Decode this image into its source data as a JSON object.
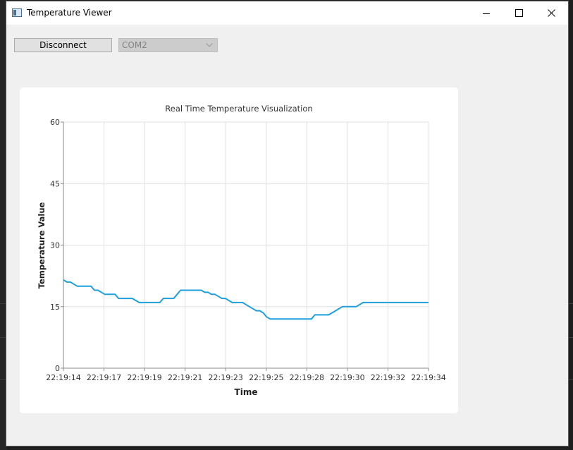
{
  "window": {
    "title": "Temperature Viewer",
    "controls": [
      "minimize-icon",
      "maximize-icon",
      "close-icon"
    ]
  },
  "toolbar": {
    "connect_button_label": "Disconnect",
    "port_select": {
      "value": "COM2",
      "enabled": false
    }
  },
  "colors": {
    "series": "#1f9fdd",
    "grid": "#e0e0e0",
    "window_bg": "#f0f0f0"
  },
  "chart_data": {
    "type": "line",
    "title": "Real Time Temperature Visualization",
    "xlabel": "Time",
    "ylabel": "Temperature Value",
    "ylim": [
      0,
      60
    ],
    "yticks": [
      0,
      15,
      30,
      45,
      60
    ],
    "xtick_labels": [
      "22:19:14",
      "22:19:17",
      "22:19:19",
      "22:19:21",
      "22:19:23",
      "22:19:25",
      "22:19:28",
      "22:19:30",
      "22:19:32",
      "22:19:34"
    ],
    "grid": true,
    "legend": "none",
    "series": [
      {
        "values": [
          21.5,
          21,
          21,
          20.5,
          20,
          20,
          20,
          20,
          20,
          19,
          19,
          18.5,
          18,
          18,
          18,
          18,
          17,
          17,
          17,
          17,
          17,
          16.5,
          16,
          16,
          16,
          16,
          16,
          16,
          16,
          17,
          17,
          17,
          17,
          18,
          19,
          19,
          19,
          19,
          19,
          19,
          19,
          18.5,
          18.5,
          18,
          18,
          17.5,
          17,
          17,
          16.5,
          16,
          16,
          16,
          16,
          15.5,
          15,
          14.5,
          14,
          14,
          13.5,
          12.5,
          12,
          12,
          12,
          12,
          12,
          12,
          12,
          12,
          12,
          12,
          12,
          12,
          12,
          13,
          13,
          13,
          13,
          13,
          13.5,
          14,
          14.5,
          15,
          15,
          15,
          15,
          15,
          15.5,
          16,
          16,
          16,
          16,
          16,
          16,
          16,
          16,
          16,
          16,
          16,
          16,
          16,
          16,
          16,
          16,
          16,
          16,
          16,
          16
        ]
      }
    ]
  }
}
